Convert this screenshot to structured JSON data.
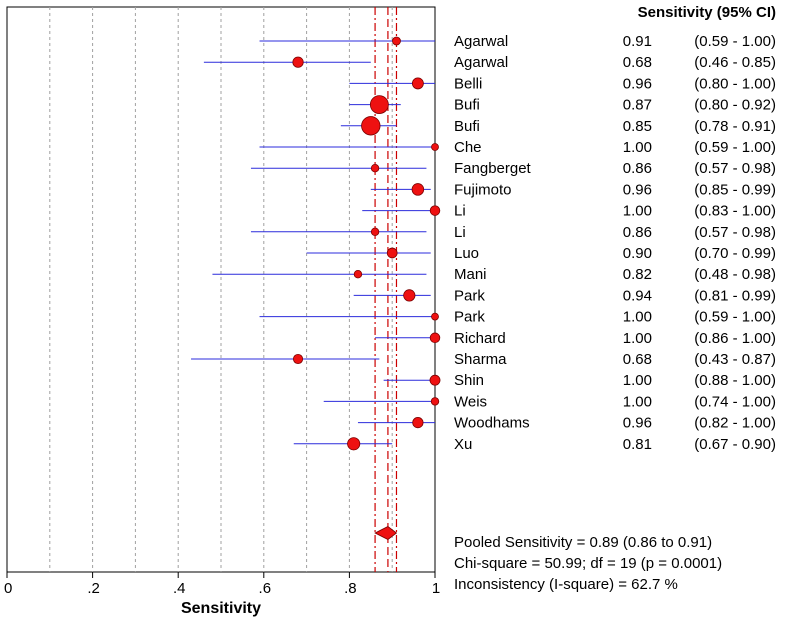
{
  "chart_data": {
    "type": "forest",
    "column_header": "Sensitivity (95% CI)",
    "xlabel": "Sensitivity",
    "xlim": [
      0,
      1
    ],
    "x_ticks": [
      {
        "value": 0,
        "label": "0"
      },
      {
        "value": 0.2,
        "label": ".2"
      },
      {
        "value": 0.4,
        "label": ".4"
      },
      {
        "value": 0.6,
        "label": ".6"
      },
      {
        "value": 0.8,
        "label": ".8"
      },
      {
        "value": 1,
        "label": "1"
      }
    ],
    "grid_x": [
      0.1,
      0.2,
      0.3,
      0.4,
      0.5,
      0.6,
      0.7,
      0.8,
      0.9
    ],
    "studies": [
      {
        "name": "Agarwal",
        "sens": 0.91,
        "sens_label": "0.91",
        "ci_lo": 0.59,
        "ci_hi": 1.0,
        "ci_label": "(0.59 - 1.00)",
        "weight": 1.8
      },
      {
        "name": "Agarwal",
        "sens": 0.68,
        "sens_label": "0.68",
        "ci_lo": 0.46,
        "ci_hi": 0.85,
        "ci_label": "(0.46 - 0.85)",
        "weight": 3.0
      },
      {
        "name": "Belli",
        "sens": 0.96,
        "sens_label": "0.96",
        "ci_lo": 0.8,
        "ci_hi": 1.0,
        "ci_label": "(0.80 - 1.00)",
        "weight": 3.4
      },
      {
        "name": "Bufi",
        "sens": 0.87,
        "sens_label": "0.87",
        "ci_lo": 0.8,
        "ci_hi": 0.92,
        "ci_label": "(0.80 - 0.92)",
        "weight": 9.0
      },
      {
        "name": "Bufi",
        "sens": 0.85,
        "sens_label": "0.85",
        "ci_lo": 0.78,
        "ci_hi": 0.91,
        "ci_label": "(0.78 - 0.91)",
        "weight": 9.5
      },
      {
        "name": "Che",
        "sens": 1.0,
        "sens_label": "1.00",
        "ci_lo": 0.59,
        "ci_hi": 1.0,
        "ci_label": "(0.59 - 1.00)",
        "weight": 1.2
      },
      {
        "name": "Fangberget",
        "sens": 0.86,
        "sens_label": "0.86",
        "ci_lo": 0.57,
        "ci_hi": 0.98,
        "ci_label": "(0.57 - 0.98)",
        "weight": 1.6
      },
      {
        "name": "Fujimoto",
        "sens": 0.96,
        "sens_label": "0.96",
        "ci_lo": 0.85,
        "ci_hi": 0.99,
        "ci_label": "(0.85 - 0.99)",
        "weight": 3.8
      },
      {
        "name": "Li",
        "sens": 1.0,
        "sens_label": "1.00",
        "ci_lo": 0.83,
        "ci_hi": 1.0,
        "ci_label": "(0.83 - 1.00)",
        "weight": 2.6
      },
      {
        "name": "Li",
        "sens": 0.86,
        "sens_label": "0.86",
        "ci_lo": 0.57,
        "ci_hi": 0.98,
        "ci_label": "(0.57 - 0.98)",
        "weight": 1.6
      },
      {
        "name": "Luo",
        "sens": 0.9,
        "sens_label": "0.90",
        "ci_lo": 0.7,
        "ci_hi": 0.99,
        "ci_label": "(0.70 - 0.99)",
        "weight": 2.7
      },
      {
        "name": "Mani",
        "sens": 0.82,
        "sens_label": "0.82",
        "ci_lo": 0.48,
        "ci_hi": 0.98,
        "ci_label": "(0.48 - 0.98)",
        "weight": 1.6
      },
      {
        "name": "Park",
        "sens": 0.94,
        "sens_label": "0.94",
        "ci_lo": 0.81,
        "ci_hi": 0.99,
        "ci_label": "(0.81 - 0.99)",
        "weight": 3.6
      },
      {
        "name": "Park",
        "sens": 1.0,
        "sens_label": "1.00",
        "ci_lo": 0.59,
        "ci_hi": 1.0,
        "ci_label": "(0.59 - 1.00)",
        "weight": 1.2
      },
      {
        "name": "Richard",
        "sens": 1.0,
        "sens_label": "1.00",
        "ci_lo": 0.86,
        "ci_hi": 1.0,
        "ci_label": "(0.86 - 1.00)",
        "weight": 2.6
      },
      {
        "name": "Sharma",
        "sens": 0.68,
        "sens_label": "0.68",
        "ci_lo": 0.43,
        "ci_hi": 0.87,
        "ci_label": "(0.43 - 0.87)",
        "weight": 2.4
      },
      {
        "name": "Shin",
        "sens": 1.0,
        "sens_label": "1.00",
        "ci_lo": 0.88,
        "ci_hi": 1.0,
        "ci_label": "(0.88 - 1.00)",
        "weight": 2.8
      },
      {
        "name": "Weis",
        "sens": 1.0,
        "sens_label": "1.00",
        "ci_lo": 0.74,
        "ci_hi": 1.0,
        "ci_label": "(0.74 - 1.00)",
        "weight": 1.6
      },
      {
        "name": "Woodhams",
        "sens": 0.96,
        "sens_label": "0.96",
        "ci_lo": 0.82,
        "ci_hi": 1.0,
        "ci_label": "(0.82 - 1.00)",
        "weight": 3.0
      },
      {
        "name": "Xu",
        "sens": 0.81,
        "sens_label": "0.81",
        "ci_lo": 0.67,
        "ci_hi": 0.9,
        "ci_label": "(0.67 - 0.90)",
        "weight": 4.2
      }
    ],
    "pooled": {
      "estimate": 0.89,
      "ci_lo": 0.86,
      "ci_hi": 0.91
    },
    "summary_lines": [
      "Pooled Sensitivity = 0.89 (0.86 to 0.91)",
      "Chi-square = 50.99; df =  19 (p = 0.0001)",
      "Inconsistency (I-square) = 62.7 %"
    ],
    "colors": {
      "marker_fill": "#ee1111",
      "marker_stroke": "#7a0000",
      "ci_line": "#2b2bdc",
      "pooled_line": "#cc0000",
      "grid": "#a0a0a0",
      "frame": "#000000"
    }
  }
}
